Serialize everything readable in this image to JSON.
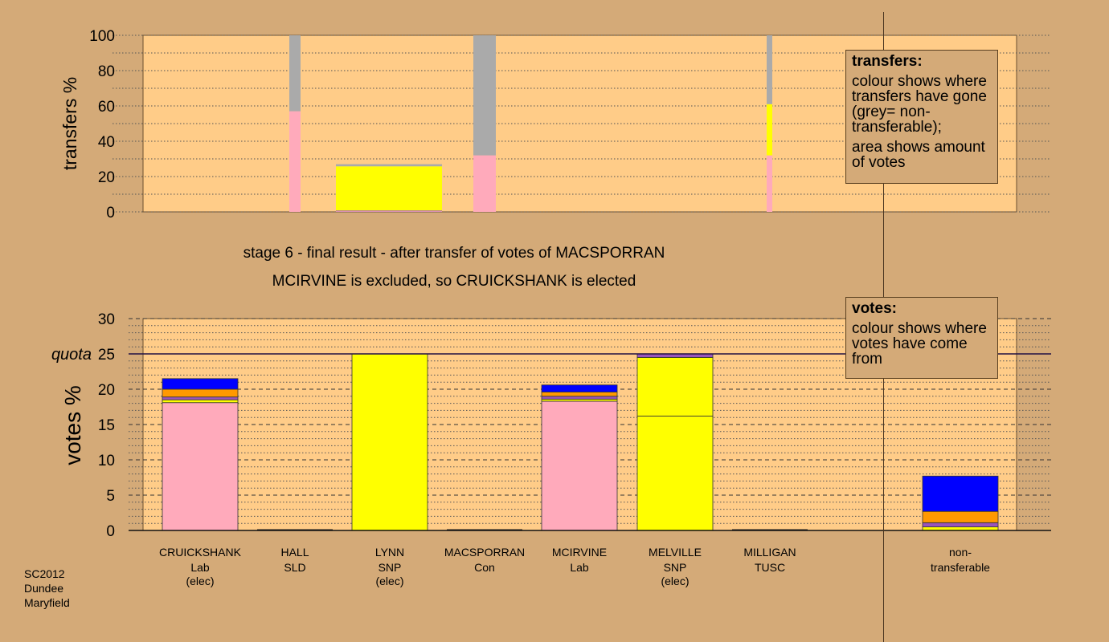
{
  "chart_data": [
    {
      "type": "bar",
      "ylabel": "transfers %",
      "ylim": [
        0,
        100
      ],
      "yticks": [
        "0",
        "20",
        "40",
        "60",
        "80",
        "100"
      ],
      "grid": "dotted, every 10",
      "columns": [
        {
          "category": "HALL",
          "segments": [
            {
              "color": "#ffaabb",
              "value": 57
            },
            {
              "color": "#aaaaaa",
              "value": 43
            }
          ]
        },
        {
          "category": "LYNN",
          "segments": [
            {
              "color": "#ffaabb",
              "value": 0.3
            },
            {
              "color": "#9955bb",
              "value": 0.5
            },
            {
              "color": "#ffff00",
              "value": 25
            },
            {
              "color": "#aaaaaa",
              "value": 1.2
            }
          ]
        },
        {
          "category": "MACSPORRAN",
          "segments": [
            {
              "color": "#ffaabb",
              "value": 32
            },
            {
              "color": "#aaaaaa",
              "value": 68
            }
          ]
        },
        {
          "category": "MILLIGAN",
          "segments": [
            {
              "color": "#ffaabb",
              "value": 32
            },
            {
              "color": "#ffff00",
              "value": 29
            },
            {
              "color": "#aaaaaa",
              "value": 39
            }
          ]
        }
      ]
    },
    {
      "type": "bar",
      "ylabel": "votes %",
      "ylim": [
        0,
        30
      ],
      "yticks": [
        "0",
        "5",
        "10",
        "15",
        "20",
        "25",
        "30"
      ],
      "quota": 25,
      "quota_label": "quota",
      "grid": "dotted every 1, dashed every 5",
      "categories": [
        {
          "name": "CRUICKSHANK",
          "party": "Lab",
          "status": "(elec)"
        },
        {
          "name": "HALL",
          "party": "SLD",
          "status": ""
        },
        {
          "name": "LYNN",
          "party": "SNP",
          "status": "(elec)"
        },
        {
          "name": "MACSPORRAN",
          "party": "Con",
          "status": ""
        },
        {
          "name": "MCIRVINE",
          "party": "Lab",
          "status": ""
        },
        {
          "name": "MELVILLE",
          "party": "SNP",
          "status": "(elec)"
        },
        {
          "name": "MILLIGAN",
          "party": "TUSC",
          "status": ""
        },
        {
          "name": "non-",
          "party": "transferable",
          "status": ""
        }
      ],
      "series": [
        {
          "color": "#ffaabb",
          "values": [
            18.1,
            0,
            0,
            0,
            18.3,
            0,
            0,
            0
          ]
        },
        {
          "color": "#ffff00",
          "values": [
            0.4,
            0,
            25,
            0,
            0.3,
            16.2,
            0,
            0.5
          ]
        },
        {
          "color": "#ffff00",
          "values": [
            0,
            0,
            0,
            0,
            0,
            8.3,
            0,
            0
          ]
        },
        {
          "color": "#9955bb",
          "values": [
            0.4,
            0,
            0,
            0,
            0.4,
            0.5,
            0,
            0.6
          ]
        },
        {
          "color": "#ff9900",
          "values": [
            1.1,
            0,
            0,
            0,
            0.6,
            0,
            0,
            1.6
          ]
        },
        {
          "color": "#0000ff",
          "values": [
            1.5,
            0,
            0,
            0,
            1.0,
            0,
            0,
            5.0
          ]
        }
      ]
    }
  ],
  "titles": {
    "line1": "stage 6 - final result - after transfer of votes of MACSPORRAN",
    "line2": "MCIRVINE is excluded, so CRUICKSHANK is elected"
  },
  "legend_transfers": {
    "heading": "transfers:",
    "text1": "colour shows where transfers have gone (grey= non-transferable);",
    "text2": "area shows amount of votes"
  },
  "legend_votes": {
    "heading": "votes:",
    "text1": "colour shows where votes have come from"
  },
  "footer": {
    "line1": "SC2012",
    "line2": "Dundee",
    "line3": "Maryfield"
  },
  "colors": {
    "background": "#d4aa78",
    "plot_fill": "#ffcc88",
    "lab": "#ffaabb",
    "snp": "#ffff00",
    "sld": "#ff9900",
    "con": "#0000ff",
    "tusc": "#9955bb",
    "nontransferable": "#aaaaaa"
  }
}
